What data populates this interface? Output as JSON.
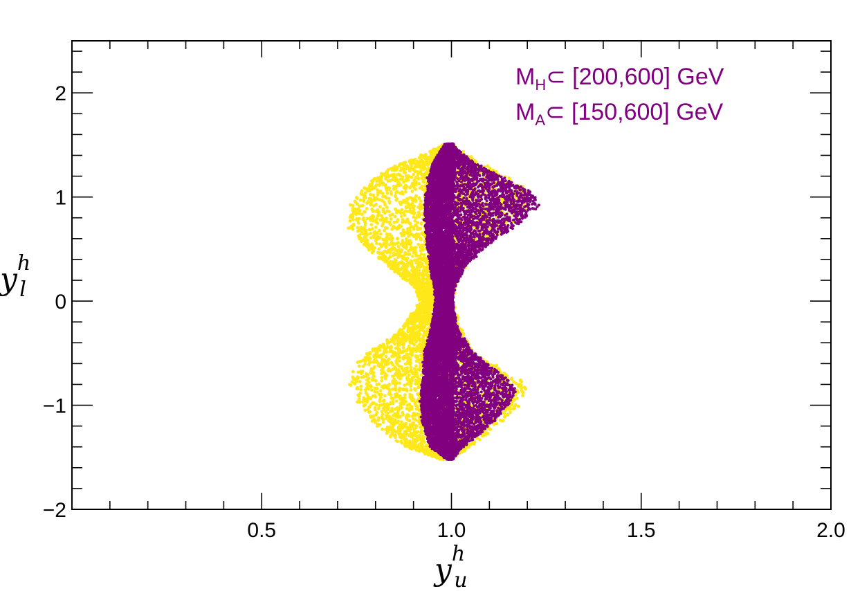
{
  "chart_data": {
    "type": "scatter",
    "title": "",
    "xlabel": {
      "base": "y",
      "sup": "h",
      "sub": "u"
    },
    "ylabel": {
      "base": "y",
      "sup": "h",
      "sub": "l"
    },
    "xlim": [
      0.0,
      2.0
    ],
    "ylim": [
      -2.0,
      2.5
    ],
    "x_ticks": [
      {
        "value": 0.5,
        "label": "0.5"
      },
      {
        "value": 1.0,
        "label": "1.0"
      },
      {
        "value": 1.5,
        "label": "1.5"
      },
      {
        "value": 2.0,
        "label": "2.0"
      }
    ],
    "y_ticks": [
      {
        "value": -2,
        "label": "−2"
      },
      {
        "value": -1,
        "label": "−1"
      },
      {
        "value": 0,
        "label": "0"
      },
      {
        "value": 1,
        "label": "1"
      },
      {
        "value": 2,
        "label": "2"
      }
    ],
    "grid": false,
    "annotations": [
      {
        "main": "M",
        "sub": "H",
        "rest": "⊂ [200,600] GeV"
      },
      {
        "main": "M",
        "sub": "A",
        "rest": "⊂ [150,600] GeV"
      }
    ],
    "series": [
      {
        "color": "#ffe81a",
        "description_region": "wider band",
        "envelope": [
          [
            -1.52,
            0.975,
            1.0
          ],
          [
            -1.4,
            0.88,
            1.05
          ],
          [
            -1.2,
            0.8,
            1.12
          ],
          [
            -1.0,
            0.76,
            1.18
          ],
          [
            -0.8,
            0.73,
            1.2
          ],
          [
            -0.65,
            0.74,
            1.13
          ],
          [
            -0.5,
            0.78,
            1.06
          ],
          [
            -0.3,
            0.86,
            1.03
          ],
          [
            -0.1,
            0.9,
            1.01
          ],
          [
            0.0,
            0.92,
            1.0
          ],
          [
            0.15,
            0.9,
            1.01
          ],
          [
            0.35,
            0.83,
            1.04
          ],
          [
            0.5,
            0.78,
            1.08
          ],
          [
            0.7,
            0.73,
            1.15
          ],
          [
            0.9,
            0.73,
            1.2
          ],
          [
            1.1,
            0.77,
            1.19
          ],
          [
            1.25,
            0.82,
            1.12
          ],
          [
            1.4,
            0.92,
            1.04
          ],
          [
            1.51,
            0.985,
            1.0
          ]
        ]
      },
      {
        "color": "#800080",
        "description_region": "core band",
        "envelope": [
          [
            -1.52,
            0.99,
            1.0
          ],
          [
            -1.4,
            0.945,
            1.03
          ],
          [
            -1.2,
            0.925,
            1.1
          ],
          [
            -1.0,
            0.92,
            1.15
          ],
          [
            -0.85,
            0.92,
            1.17
          ],
          [
            -0.7,
            0.925,
            1.13
          ],
          [
            -0.5,
            0.93,
            1.06
          ],
          [
            -0.3,
            0.945,
            1.02
          ],
          [
            -0.1,
            0.955,
            1.005
          ],
          [
            0.0,
            0.96,
            1.0
          ],
          [
            0.15,
            0.955,
            1.01
          ],
          [
            0.35,
            0.945,
            1.04
          ],
          [
            0.55,
            0.935,
            1.1
          ],
          [
            0.75,
            0.93,
            1.18
          ],
          [
            0.9,
            0.93,
            1.23
          ],
          [
            1.05,
            0.935,
            1.21
          ],
          [
            1.2,
            0.94,
            1.13
          ],
          [
            1.35,
            0.955,
            1.05
          ],
          [
            1.51,
            0.985,
            1.0
          ]
        ]
      }
    ]
  }
}
